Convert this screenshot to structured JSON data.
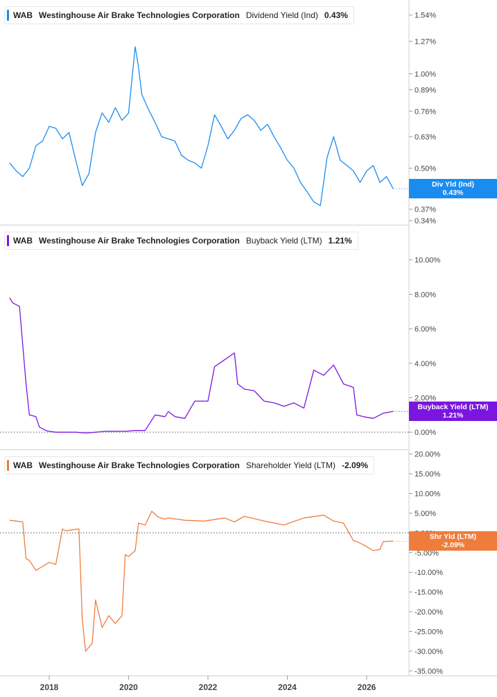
{
  "chart_data": [
    {
      "type": "line",
      "ticker": "WAB",
      "company": "Westinghouse Air Brake Technologies Corporation",
      "metric": "Dividend Yield (Ind)",
      "value_label": "0.43%",
      "tag_title": "Div Yld (Ind)",
      "tag_value": "0.43%",
      "color": "#1a8cf0",
      "yscale": "log",
      "ylim": [
        0.33,
        1.72
      ],
      "yticks": [
        0.34,
        0.37,
        0.5,
        0.63,
        0.76,
        0.89,
        1.0,
        1.27,
        1.54
      ],
      "ytick_labels": [
        "0.34%",
        "0.37%",
        "0.50%",
        "0.63%",
        "0.76%",
        "0.89%",
        "1.00%",
        "1.27%",
        "1.54%"
      ],
      "series": [
        {
          "x": [
            "2017-01",
            "2017-03",
            "2017-05",
            "2017-07",
            "2017-09",
            "2017-11",
            "2018-01",
            "2018-03",
            "2018-05",
            "2018-07",
            "2018-09",
            "2018-11",
            "2019-01",
            "2019-03",
            "2019-05",
            "2019-07",
            "2019-09",
            "2019-11",
            "2020-01",
            "2020-03",
            "2020-04",
            "2020-05",
            "2020-07",
            "2020-09",
            "2020-11",
            "2021-01",
            "2021-03",
            "2021-05",
            "2021-07",
            "2021-09",
            "2021-11",
            "2022-01",
            "2022-03",
            "2022-05",
            "2022-07",
            "2022-09",
            "2022-11",
            "2023-01",
            "2023-03",
            "2023-05",
            "2023-07",
            "2023-09",
            "2023-11",
            "2024-01",
            "2024-03",
            "2024-05",
            "2024-07",
            "2024-09",
            "2024-11",
            "2025-01",
            "2025-03",
            "2025-05",
            "2025-07",
            "2025-09",
            "2025-11",
            "2026-01",
            "2026-03",
            "2026-05",
            "2026-07",
            "2026-09"
          ],
          "y": [
            0.52,
            0.49,
            0.47,
            0.5,
            0.59,
            0.61,
            0.68,
            0.67,
            0.62,
            0.65,
            0.53,
            0.44,
            0.48,
            0.65,
            0.75,
            0.7,
            0.78,
            0.71,
            0.75,
            1.22,
            1.05,
            0.86,
            0.77,
            0.7,
            0.63,
            0.62,
            0.61,
            0.55,
            0.53,
            0.52,
            0.5,
            0.59,
            0.74,
            0.68,
            0.62,
            0.66,
            0.72,
            0.74,
            0.71,
            0.66,
            0.69,
            0.63,
            0.58,
            0.53,
            0.5,
            0.45,
            0.42,
            0.39,
            0.38,
            0.54,
            0.63,
            0.53,
            0.51,
            0.49,
            0.45,
            0.49,
            0.51,
            0.45,
            0.47,
            0.43
          ]
        }
      ]
    },
    {
      "type": "line",
      "ticker": "WAB",
      "company": "Westinghouse Air Brake Technologies Corporation",
      "metric": "Buyback Yield (LTM)",
      "value_label": "1.21%",
      "tag_title": "Buyback Yield (LTM)",
      "tag_value": "1.21%",
      "color": "#7b16e0",
      "yscale": "linear",
      "ylim": [
        -1.0,
        12.0
      ],
      "yticks": [
        0,
        2,
        4,
        6,
        8,
        10
      ],
      "ytick_labels": [
        "0.00%",
        "2.00%",
        "4.00%",
        "6.00%",
        "8.00%",
        "10.00%"
      ],
      "zero_line": 0,
      "series": [
        {
          "x": [
            "2017-01",
            "2017-02",
            "2017-04",
            "2017-06",
            "2017-07",
            "2017-09",
            "2017-10",
            "2017-12",
            "2018-01",
            "2018-03",
            "2018-06",
            "2018-09",
            "2018-12",
            "2019-03",
            "2019-06",
            "2019-09",
            "2019-12",
            "2020-03",
            "2020-06",
            "2020-09",
            "2020-12",
            "2021-01",
            "2021-03",
            "2021-06",
            "2021-09",
            "2022-01",
            "2022-03",
            "2022-06",
            "2022-09",
            "2022-10",
            "2022-12",
            "2023-03",
            "2023-06",
            "2023-09",
            "2023-12",
            "2024-03",
            "2024-06",
            "2024-09",
            "2024-12",
            "2025-03",
            "2025-06",
            "2025-09",
            "2025-10",
            "2025-12",
            "2026-03",
            "2026-06",
            "2026-09"
          ],
          "y": [
            7.8,
            7.5,
            7.3,
            2.8,
            1.0,
            0.9,
            0.3,
            0.1,
            0.05,
            0.0,
            0.0,
            0.0,
            -0.05,
            0.0,
            0.05,
            0.05,
            0.05,
            0.1,
            0.1,
            1.0,
            0.9,
            1.2,
            0.9,
            0.8,
            1.8,
            1.8,
            3.8,
            4.2,
            4.6,
            2.8,
            2.5,
            2.4,
            1.8,
            1.7,
            1.5,
            1.7,
            1.4,
            3.6,
            3.3,
            3.9,
            2.8,
            2.6,
            1.0,
            0.9,
            0.8,
            1.1,
            1.21
          ]
        }
      ]
    },
    {
      "type": "line",
      "ticker": "WAB",
      "company": "Westinghouse Air Brake Technologies Corporation",
      "metric": "Shareholder Yield (LTM)",
      "value_label": "-2.09%",
      "tag_title": "Shr Yld (LTM)",
      "tag_value": "-2.09%",
      "color": "#f07c3c",
      "yscale": "linear",
      "ylim": [
        -36.0,
        21.0
      ],
      "yticks": [
        -35,
        -30,
        -25,
        -20,
        -15,
        -10,
        -5,
        0,
        5,
        10,
        15,
        20
      ],
      "ytick_labels": [
        "-35.00%",
        "-30.00%",
        "-25.00%",
        "-20.00%",
        "-15.00%",
        "-10.00%",
        "-5.00%",
        "0.00%",
        "5.00%",
        "10.00%",
        "15.00%",
        "20.00%"
      ],
      "zero_line": 0,
      "series": [
        {
          "x": [
            "2017-01",
            "2017-03",
            "2017-05",
            "2017-06",
            "2017-07",
            "2017-09",
            "2017-10",
            "2017-12",
            "2018-01",
            "2018-03",
            "2018-05",
            "2018-06",
            "2018-08",
            "2018-10",
            "2018-11",
            "2018-12",
            "2019-02",
            "2019-03",
            "2019-05",
            "2019-07",
            "2019-09",
            "2019-11",
            "2019-12",
            "2020-01",
            "2020-03",
            "2020-04",
            "2020-06",
            "2020-08",
            "2020-10",
            "2020-12",
            "2021-01",
            "2021-06",
            "2021-12",
            "2022-06",
            "2022-09",
            "2022-12",
            "2023-06",
            "2023-12",
            "2024-06",
            "2024-12",
            "2025-03",
            "2025-06",
            "2025-09",
            "2025-10",
            "2025-12",
            "2026-03",
            "2026-05",
            "2026-06",
            "2026-09"
          ],
          "y": [
            3.2,
            3.0,
            2.8,
            -6.5,
            -7.0,
            -9.5,
            -9.0,
            -8.0,
            -7.5,
            -8.0,
            1.0,
            0.5,
            0.8,
            1.0,
            -22.0,
            -30.0,
            -28.0,
            -17.0,
            -24.0,
            -21.0,
            -23.0,
            -21.0,
            -5.5,
            -6.0,
            -4.5,
            2.5,
            2.0,
            5.5,
            4.0,
            3.5,
            3.8,
            3.2,
            3.0,
            3.8,
            2.8,
            4.2,
            3.0,
            2.0,
            3.8,
            4.5,
            3.0,
            2.5,
            -2.0,
            -2.2,
            -3.0,
            -4.5,
            -4.2,
            -2.2,
            -2.09
          ]
        }
      ]
    }
  ],
  "x_axis": {
    "ticks": [
      "2018",
      "2020",
      "2022",
      "2024",
      "2026"
    ]
  }
}
